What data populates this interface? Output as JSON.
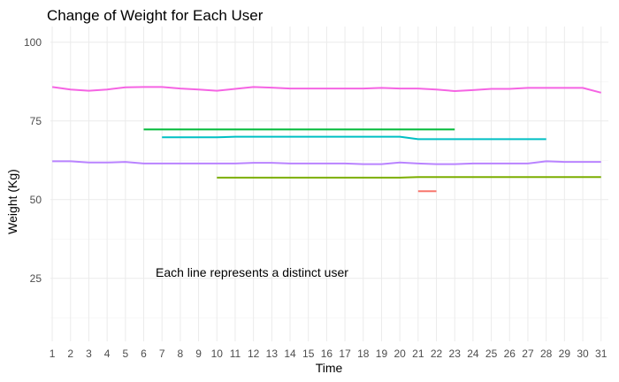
{
  "chart_data": {
    "type": "line",
    "title": "Change of Weight for Each User",
    "xlabel": "Time",
    "ylabel": "Weight (Kg)",
    "annotation": "Each line represents a distinct user",
    "x_ticks": [
      1,
      2,
      3,
      4,
      5,
      6,
      7,
      8,
      9,
      10,
      11,
      12,
      13,
      14,
      15,
      16,
      17,
      18,
      19,
      20,
      21,
      22,
      23,
      24,
      25,
      26,
      27,
      28,
      29,
      30,
      31
    ],
    "y_ticks": [
      25,
      50,
      75,
      100
    ],
    "xlim": [
      0.9,
      31.4
    ],
    "ylim": [
      5,
      105
    ],
    "grid": true,
    "legend": "none",
    "series": [
      {
        "color": "#F564E3",
        "x": [
          1,
          2,
          3,
          4,
          5,
          6,
          7,
          8,
          9,
          10,
          11,
          12,
          13,
          14,
          15,
          16,
          17,
          18,
          19,
          20,
          21,
          22,
          23,
          24,
          25,
          26,
          27,
          28,
          29,
          30,
          31
        ],
        "y": [
          85.8,
          85.0,
          84.6,
          85.0,
          85.7,
          85.8,
          85.8,
          85.3,
          85.0,
          84.6,
          85.2,
          85.8,
          85.6,
          85.3,
          85.3,
          85.3,
          85.3,
          85.3,
          85.5,
          85.3,
          85.3,
          85.0,
          84.5,
          84.8,
          85.2,
          85.2,
          85.5,
          85.5,
          85.5,
          85.5,
          84.0
        ]
      },
      {
        "color": "#00BA38",
        "x": [
          6,
          7,
          8,
          9,
          10,
          11,
          12,
          13,
          14,
          15,
          16,
          17,
          18,
          19,
          20,
          21,
          22,
          23
        ],
        "y": [
          72.3,
          72.3,
          72.3,
          72.3,
          72.3,
          72.3,
          72.3,
          72.3,
          72.3,
          72.3,
          72.3,
          72.3,
          72.3,
          72.3,
          72.3,
          72.3,
          72.3,
          72.3
        ]
      },
      {
        "color": "#00BFC4",
        "x": [
          7,
          8,
          9,
          10,
          11,
          12,
          13,
          14,
          15,
          16,
          17,
          18,
          19,
          20,
          21,
          22,
          23,
          24,
          25,
          26,
          27,
          28
        ],
        "y": [
          69.8,
          69.8,
          69.8,
          69.8,
          70.0,
          70.0,
          70.0,
          70.0,
          70.0,
          70.0,
          70.0,
          70.0,
          70.0,
          70.0,
          69.2,
          69.2,
          69.2,
          69.2,
          69.2,
          69.2,
          69.2,
          69.2
        ]
      },
      {
        "color": "#B983FF",
        "x": [
          1,
          2,
          3,
          4,
          5,
          6,
          7,
          8,
          9,
          10,
          11,
          12,
          13,
          14,
          15,
          16,
          17,
          18,
          19,
          20,
          21,
          22,
          23,
          24,
          25,
          26,
          27,
          28,
          29,
          30,
          31
        ],
        "y": [
          62.2,
          62.2,
          61.8,
          61.8,
          62.0,
          61.5,
          61.5,
          61.5,
          61.5,
          61.5,
          61.5,
          61.7,
          61.7,
          61.5,
          61.5,
          61.5,
          61.5,
          61.3,
          61.3,
          61.8,
          61.5,
          61.3,
          61.3,
          61.5,
          61.5,
          61.5,
          61.5,
          62.2,
          62.0,
          62.0,
          62.0
        ]
      },
      {
        "color": "#7CAE00",
        "x": [
          10,
          11,
          12,
          13,
          14,
          15,
          16,
          17,
          18,
          19,
          20,
          21,
          22,
          23,
          24,
          25,
          26,
          27,
          28,
          29,
          30,
          31
        ],
        "y": [
          57.0,
          57.0,
          57.0,
          57.0,
          57.0,
          57.0,
          57.0,
          57.0,
          57.0,
          57.0,
          57.0,
          57.2,
          57.2,
          57.2,
          57.2,
          57.2,
          57.2,
          57.2,
          57.2,
          57.2,
          57.2,
          57.2
        ]
      },
      {
        "color": "#F8766D",
        "x": [
          21,
          22
        ],
        "y": [
          52.7,
          52.7
        ]
      }
    ]
  }
}
